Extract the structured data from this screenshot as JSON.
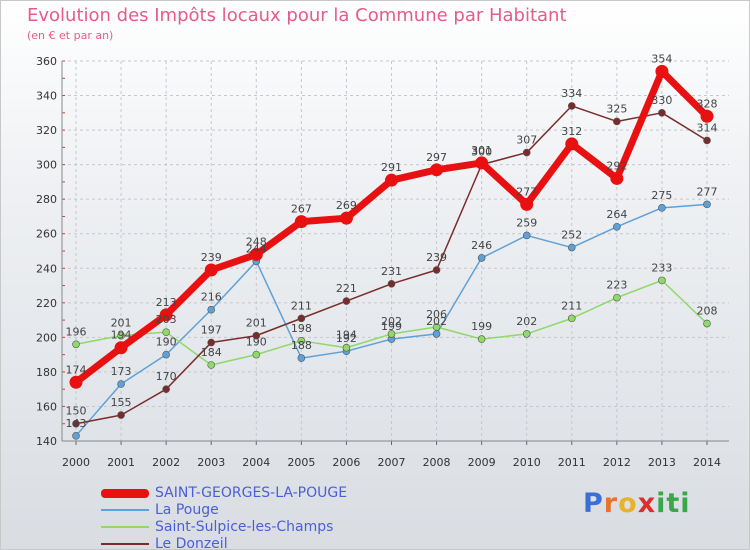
{
  "header": {
    "title": "Evolution des Impôts locaux pour la Commune par Habitant",
    "subtitle": "(en € et par an)"
  },
  "brand": {
    "letters": [
      "P",
      "r",
      "o",
      "x",
      "i",
      "t",
      "i"
    ],
    "colors": [
      "#3a6fd6",
      "#e8742b",
      "#e8b32b",
      "#d9302c",
      "#3aa84a",
      "#3aa84a",
      "#3aa84a"
    ]
  },
  "chart_data": {
    "type": "line",
    "x": [
      2000,
      2001,
      2002,
      2003,
      2004,
      2005,
      2006,
      2007,
      2008,
      2009,
      2010,
      2011,
      2012,
      2013,
      2014
    ],
    "ylim": [
      140,
      360
    ],
    "yticks": [
      140,
      160,
      180,
      200,
      220,
      240,
      260,
      280,
      300,
      320,
      340,
      360
    ],
    "grid": true,
    "legend_position": "bottom-left",
    "series": [
      {
        "name": "SAINT-GEORGES-LA-POUGE",
        "color": "#e81010",
        "values": [
          174,
          194,
          213,
          239,
          248,
          267,
          269,
          291,
          297,
          301,
          277,
          312,
          292,
          354,
          328
        ],
        "labels": [
          "174",
          "194",
          "213",
          "239",
          "248",
          "267",
          "269",
          "291",
          "297",
          "301",
          "277",
          "312",
          "292",
          "354",
          "328"
        ]
      },
      {
        "name": "La Pouge",
        "color": "#5ea0d8",
        "values": [
          143,
          173,
          190,
          216,
          244,
          188,
          192,
          199,
          202,
          246,
          259,
          252,
          264,
          275,
          277
        ],
        "labels": [
          "143",
          "173",
          "190",
          "216",
          "244",
          "188",
          "192",
          "199",
          "202",
          "246",
          "259",
          "252",
          "264",
          "275",
          "277"
        ]
      },
      {
        "name": "Saint-Sulpice-les-Champs",
        "color": "#8fd86a",
        "values": [
          196,
          201,
          203,
          184,
          190,
          198,
          194,
          202,
          206,
          199,
          202,
          211,
          223,
          233,
          208
        ],
        "labels": [
          "196",
          "201",
          "203",
          "184",
          "190",
          "198",
          "194",
          "202",
          "206",
          "199",
          "202",
          "211",
          "223",
          "233",
          "208"
        ]
      },
      {
        "name": "Le Donzeil",
        "color": "#7a2c2c",
        "values": [
          150,
          155,
          170,
          197,
          201,
          211,
          221,
          231,
          239,
          300,
          307,
          334,
          325,
          330,
          314
        ],
        "labels": [
          "150",
          "155",
          "170",
          "197",
          "201",
          "211",
          "221",
          "231",
          "239",
          "300",
          "307",
          "334",
          "325",
          "330",
          "314"
        ]
      }
    ]
  }
}
